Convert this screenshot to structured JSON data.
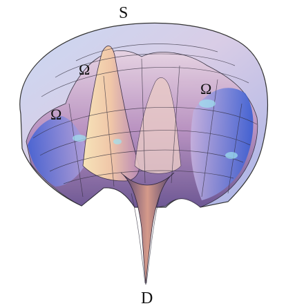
{
  "labels": {
    "top": "S",
    "bottom": "D",
    "omega_left": "Ω",
    "omega_mid": "Ω",
    "omega_right": "Ω"
  },
  "colors": {
    "surface_light": "#f2e6ee",
    "surface_mid": "#c79fc3",
    "surface_dark": "#5f4a86",
    "surface_blue": "#3d63d8",
    "surface_cyan": "#9fe3f0",
    "surface_peach": "#f3c9a4",
    "mesh": "#2f2b3a"
  }
}
